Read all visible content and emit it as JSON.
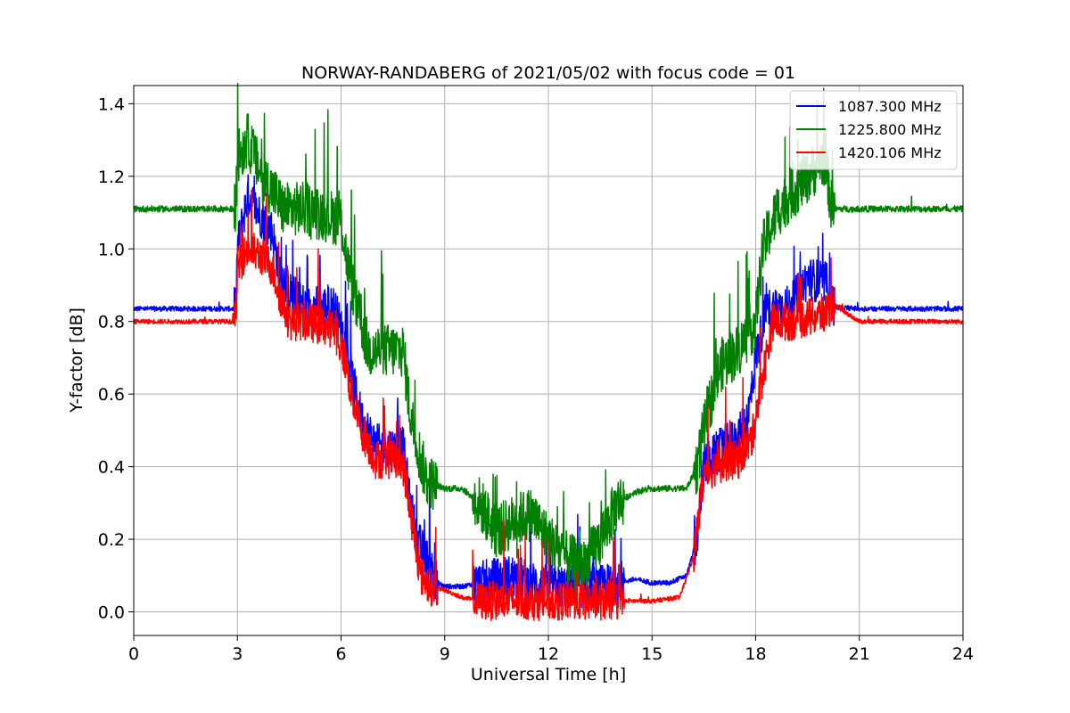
{
  "chart_data": {
    "type": "line",
    "title": "NORWAY-RANDABERG of 2021/05/02 with focus code = 01",
    "xlabel": "Universal Time [h]",
    "ylabel": "Y-factor [dB]",
    "xlim": [
      0,
      24
    ],
    "ylim": [
      -0.065,
      1.45
    ],
    "xticks": [
      0,
      3,
      6,
      9,
      12,
      15,
      18,
      21,
      24
    ],
    "xtick_labels": [
      "0",
      "3",
      "6",
      "9",
      "12",
      "15",
      "18",
      "21",
      "24"
    ],
    "yticks": [
      0.0,
      0.2,
      0.4,
      0.6,
      0.8,
      1.0,
      1.2,
      1.4
    ],
    "ytick_labels": [
      "0.0",
      "0.2",
      "0.4",
      "0.6",
      "0.8",
      "1.0",
      "1.2",
      "1.4"
    ],
    "grid": true,
    "legend_position": "top-right",
    "series": [
      {
        "name": "1087.300 MHz",
        "color": "#0000ff",
        "x": [
          0,
          2.95,
          3.0,
          3.3,
          3.6,
          4.0,
          4.2,
          4.5,
          5.0,
          5.8,
          6.1,
          6.3,
          6.6,
          7.0,
          7.5,
          7.8,
          8.0,
          8.2,
          8.5,
          8.8,
          9.0,
          9.5,
          10.0,
          10.5,
          11.0,
          11.5,
          12.0,
          12.5,
          13.0,
          13.5,
          14.0,
          14.5,
          15.0,
          15.5,
          16.0,
          16.3,
          16.5,
          17.0,
          17.5,
          17.8,
          18.0,
          18.3,
          18.6,
          19.0,
          19.5,
          20.2,
          20.25,
          21.0,
          22.0,
          23.0,
          24.0
        ],
        "values": [
          0.835,
          0.835,
          1.0,
          1.15,
          1.1,
          1.05,
          0.95,
          0.88,
          0.84,
          0.84,
          0.75,
          0.65,
          0.53,
          0.46,
          0.45,
          0.45,
          0.3,
          0.2,
          0.14,
          0.08,
          0.07,
          0.07,
          0.08,
          0.09,
          0.1,
          0.08,
          0.07,
          0.07,
          0.07,
          0.07,
          0.08,
          0.09,
          0.08,
          0.08,
          0.1,
          0.2,
          0.4,
          0.45,
          0.48,
          0.55,
          0.7,
          0.83,
          0.84,
          0.84,
          0.92,
          0.9,
          0.84,
          0.835,
          0.835,
          0.835,
          0.835
        ],
        "noise": 0.02
      },
      {
        "name": "1225.800 MHz",
        "color": "#008000",
        "x": [
          0,
          2.95,
          3.0,
          3.3,
          3.7,
          4.1,
          4.3,
          5.0,
          6.0,
          6.2,
          6.5,
          6.8,
          7.5,
          7.8,
          8.0,
          8.3,
          8.5,
          9.0,
          9.5,
          10.0,
          10.5,
          11.0,
          11.5,
          12.0,
          12.5,
          13.0,
          13.5,
          14.0,
          14.5,
          15.0,
          16.0,
          16.3,
          16.6,
          17.0,
          17.5,
          18.0,
          18.2,
          18.6,
          19.0,
          19.5,
          20.0,
          20.2,
          21.0,
          22.0,
          23.0,
          24.0
        ],
        "values": [
          1.11,
          1.11,
          1.25,
          1.3,
          1.2,
          1.15,
          1.11,
          1.11,
          1.08,
          0.95,
          0.82,
          0.72,
          0.72,
          0.72,
          0.55,
          0.42,
          0.36,
          0.34,
          0.34,
          0.3,
          0.22,
          0.25,
          0.27,
          0.2,
          0.15,
          0.12,
          0.2,
          0.3,
          0.33,
          0.34,
          0.34,
          0.4,
          0.55,
          0.68,
          0.72,
          0.8,
          1.0,
          1.1,
          1.15,
          1.2,
          1.25,
          1.11,
          1.11,
          1.11,
          1.11,
          1.11
        ],
        "noise": 0.025
      },
      {
        "name": "1420.106 MHz",
        "color": "#ff0000",
        "x": [
          0,
          2.95,
          3.0,
          3.3,
          3.7,
          4.0,
          4.2,
          4.5,
          5.0,
          5.8,
          6.1,
          6.3,
          6.6,
          7.0,
          7.5,
          7.8,
          8.0,
          8.3,
          8.6,
          9.0,
          9.5,
          10.0,
          11.0,
          12.0,
          13.0,
          14.0,
          15.0,
          15.8,
          16.2,
          16.5,
          17.0,
          17.5,
          17.9,
          18.1,
          18.5,
          19.0,
          20.0,
          20.2,
          21.0,
          22.0,
          23.0,
          24.0
        ],
        "values": [
          0.8,
          0.8,
          0.95,
          1.0,
          0.98,
          0.95,
          0.88,
          0.8,
          0.8,
          0.78,
          0.7,
          0.6,
          0.5,
          0.42,
          0.42,
          0.4,
          0.28,
          0.1,
          0.07,
          0.06,
          0.04,
          0.03,
          0.03,
          0.03,
          0.03,
          0.03,
          0.03,
          0.04,
          0.15,
          0.38,
          0.41,
          0.42,
          0.48,
          0.6,
          0.8,
          0.8,
          0.82,
          0.85,
          0.8,
          0.8,
          0.8,
          0.8
        ],
        "noise": 0.018
      }
    ]
  }
}
